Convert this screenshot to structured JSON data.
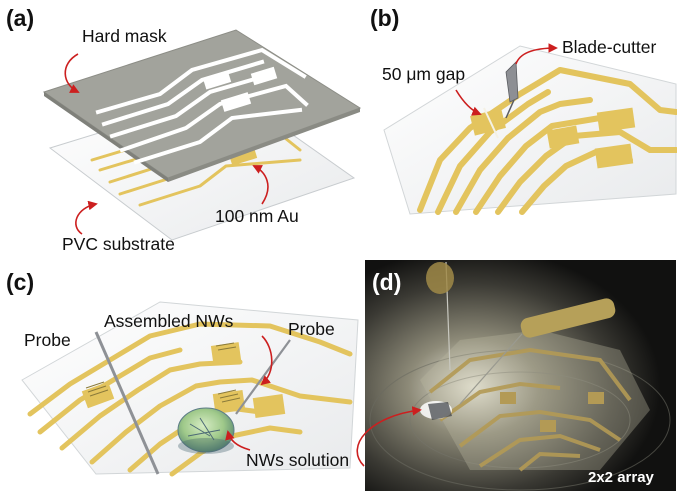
{
  "panels": {
    "a": {
      "letter": "(a)",
      "labels": {
        "hard_mask": "Hard mask",
        "au": "100 nm Au",
        "substrate": "PVC substrate"
      }
    },
    "b": {
      "letter": "(b)",
      "labels": {
        "gap": "50 μm gap",
        "cutter": "Blade-cutter"
      }
    },
    "c": {
      "letter": "(c)",
      "labels": {
        "probe_left": "Probe",
        "probe_right": "Probe",
        "nws": "Assembled NWs",
        "solution": "NWs solution"
      }
    },
    "d": {
      "letter": "(d)",
      "labels": {
        "array": "2x2 array"
      }
    }
  },
  "colors": {
    "gold": "#e3c45e",
    "mask_gray": "#a2a39c",
    "arrow_red": "#cc1f1f",
    "photo_dark": "#1c1c1a"
  }
}
